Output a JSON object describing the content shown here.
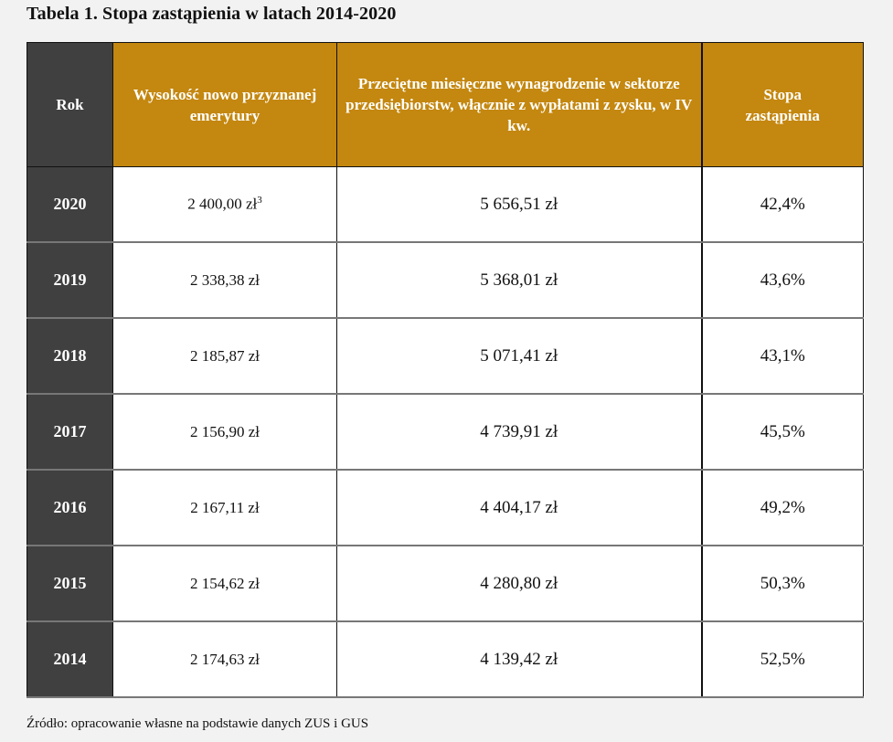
{
  "title": "Tabela 1. Stopa zastąpienia w latach 2014-2020",
  "columns": {
    "year": "Rok",
    "pension": "Wysokość nowo przyznanej emerytury",
    "wage": "Przeciętne miesięczne wynagrodzenie w sektorze przedsiębiorstw, włącznie z wypłatami z zysku, w IV kw.",
    "rate": "Stopa zastąpienia"
  },
  "rows": [
    {
      "year": "2020",
      "pension": "2 400,00 zł",
      "footnote": "3",
      "wage": "5 656,51 zł",
      "rate": "42,4%"
    },
    {
      "year": "2019",
      "pension": "2 338,38 zł",
      "wage": "5 368,01 zł",
      "rate": "43,6%"
    },
    {
      "year": "2018",
      "pension": "2 185,87 zł",
      "wage": "5 071,41 zł",
      "rate": "43,1%"
    },
    {
      "year": "2017",
      "pension": "2 156,90 zł",
      "wage": "4 739,91 zł",
      "rate": "45,5%"
    },
    {
      "year": "2016",
      "pension": "2 167,11 zł",
      "wage": "4 404,17 zł",
      "rate": "49,2%"
    },
    {
      "year": "2015",
      "pension": "2 154,62 zł",
      "wage": "4 280,80 zł",
      "rate": "50,3%"
    },
    {
      "year": "2014",
      "pension": "2 174,63 zł",
      "wage": "4 139,42 zł",
      "rate": "52,5%"
    }
  ],
  "source": "Źródło: opracowanie własne na podstawie danych ZUS i GUS",
  "colors": {
    "header": "#c4870f",
    "year_column": "#404040",
    "background": "#f2f2f2"
  }
}
